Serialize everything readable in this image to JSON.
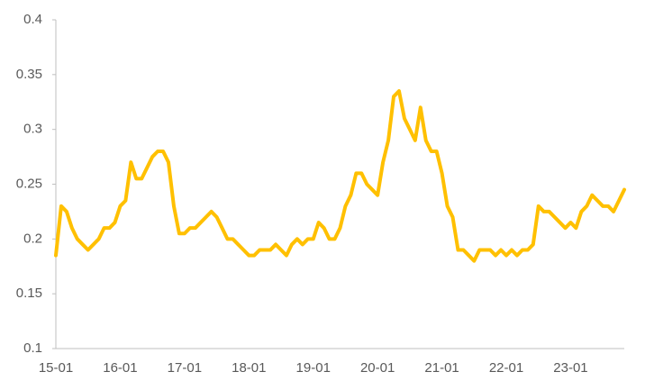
{
  "chart_data": {
    "type": "line",
    "categories": [
      "15-01",
      null,
      null,
      null,
      null,
      null,
      null,
      null,
      null,
      null,
      null,
      null,
      "16-01",
      null,
      null,
      null,
      null,
      null,
      null,
      null,
      null,
      null,
      null,
      null,
      "17-01",
      null,
      null,
      null,
      null,
      null,
      null,
      null,
      null,
      null,
      null,
      null,
      "18-01",
      null,
      null,
      null,
      null,
      null,
      null,
      null,
      null,
      null,
      null,
      null,
      "19-01",
      null,
      null,
      null,
      null,
      null,
      null,
      null,
      null,
      null,
      null,
      null,
      "20-01",
      null,
      null,
      null,
      null,
      null,
      null,
      null,
      null,
      null,
      null,
      null,
      "21-01",
      null,
      null,
      null,
      null,
      null,
      null,
      null,
      null,
      null,
      null,
      null,
      "22-01",
      null,
      null,
      null,
      null,
      null,
      null,
      null,
      null,
      null,
      null,
      null,
      "23-01",
      null,
      null,
      null,
      null,
      null,
      null,
      null,
      null,
      null,
      null
    ],
    "values": [
      0.185,
      0.23,
      0.225,
      0.21,
      0.2,
      0.195,
      0.19,
      0.195,
      0.2,
      0.21,
      0.21,
      0.215,
      0.23,
      0.235,
      0.27,
      0.255,
      0.255,
      0.265,
      0.275,
      0.28,
      0.28,
      0.27,
      0.23,
      0.205,
      0.205,
      0.21,
      0.21,
      0.215,
      0.22,
      0.225,
      0.22,
      0.21,
      0.2,
      0.2,
      0.195,
      0.19,
      0.185,
      0.185,
      0.19,
      0.19,
      0.19,
      0.195,
      0.19,
      0.185,
      0.195,
      0.2,
      0.195,
      0.2,
      0.2,
      0.215,
      0.21,
      0.2,
      0.2,
      0.21,
      0.23,
      0.24,
      0.26,
      0.26,
      0.25,
      0.245,
      0.24,
      0.27,
      0.29,
      0.33,
      0.335,
      0.31,
      0.3,
      0.29,
      0.32,
      0.29,
      0.28,
      0.28,
      0.26,
      0.23,
      0.22,
      0.19,
      0.19,
      0.185,
      0.18,
      0.19,
      0.19,
      0.19,
      0.185,
      0.19,
      0.185,
      0.19,
      0.185,
      0.19,
      0.19,
      0.195,
      0.23,
      0.225,
      0.225,
      0.22,
      0.215,
      0.21,
      0.215,
      0.21,
      0.225,
      0.23,
      0.24,
      0.235,
      0.23,
      0.23,
      0.225,
      0.235,
      0.245
    ],
    "color": "#ffc000",
    "ylim": [
      0.1,
      0.4
    ],
    "yticks": [
      0.1,
      0.15,
      0.2,
      0.25,
      0.3,
      0.35,
      0.4
    ],
    "grid": false
  }
}
